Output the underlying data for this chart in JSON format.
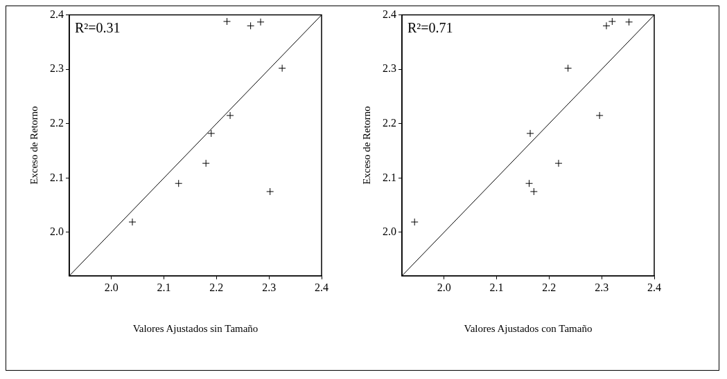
{
  "chart_data": [
    {
      "type": "scatter",
      "xlabel": "Valores Ajustados sin Tamaño",
      "ylabel": "Exceso de Retorno",
      "annotations": [
        "R²=0.31"
      ],
      "xlim": [
        1.92,
        2.4
      ],
      "ylim": [
        1.92,
        2.4
      ],
      "xticks": [
        {
          "value": 2.0,
          "label": "2.0"
        },
        2.1,
        2.2,
        2.3,
        2.4
      ],
      "yticks": [
        {
          "value": 2.0,
          "label": "2.0"
        },
        2.1,
        2.2,
        2.3,
        2.4
      ],
      "grid": false,
      "legend": false,
      "series": [
        {
          "type": "scatter",
          "marker": "cross",
          "color": "#000000",
          "x": [
            2.04,
            2.128,
            2.18,
            2.19,
            2.226,
            2.325,
            2.302,
            2.22,
            2.265,
            2.284
          ],
          "values": [
            2.019,
            2.09,
            2.127,
            2.182,
            2.215,
            2.302,
            2.075,
            2.388,
            2.38,
            2.387
          ]
        },
        {
          "type": "line",
          "color": "#000000",
          "x": [
            1.92,
            2.4
          ],
          "values": [
            1.92,
            2.4
          ]
        }
      ]
    },
    {
      "type": "scatter",
      "xlabel": "Valores Ajustados con Tamaño",
      "ylabel": "Exceso de Retorno",
      "annotations": [
        "R²=0.71"
      ],
      "xlim": [
        1.92,
        2.4
      ],
      "ylim": [
        1.92,
        2.4
      ],
      "xticks": [
        {
          "value": 2.0,
          "label": "2.0"
        },
        2.1,
        2.2,
        2.3,
        2.4
      ],
      "yticks": [
        {
          "value": 2.0,
          "label": "2.0"
        },
        2.1,
        2.2,
        2.3,
        2.4
      ],
      "grid": false,
      "legend": false,
      "series": [
        {
          "type": "scatter",
          "marker": "cross",
          "color": "#000000",
          "x": [
            1.944,
            2.162,
            2.171,
            2.164,
            2.218,
            2.236,
            2.296,
            2.309,
            2.32,
            2.352
          ],
          "values": [
            2.019,
            2.09,
            2.075,
            2.182,
            2.127,
            2.302,
            2.215,
            2.38,
            2.388,
            2.387
          ]
        },
        {
          "type": "line",
          "color": "#000000",
          "x": [
            1.92,
            2.4
          ],
          "values": [
            1.92,
            2.4
          ]
        }
      ]
    }
  ]
}
